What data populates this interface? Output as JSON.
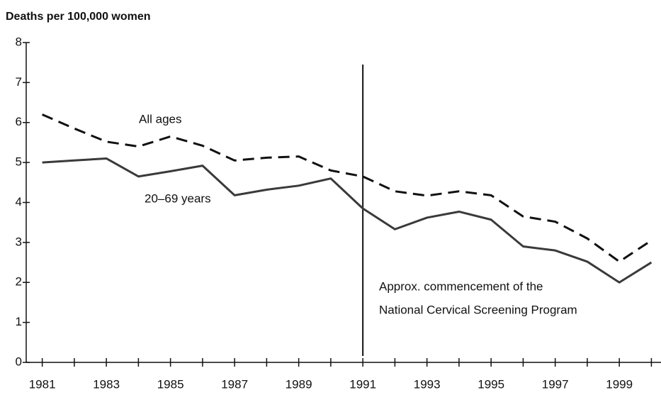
{
  "chart_data": {
    "type": "line",
    "title": "Deaths per 100,000 women",
    "x": [
      1981,
      1982,
      1983,
      1984,
      1985,
      1986,
      1987,
      1988,
      1989,
      1990,
      1991,
      1992,
      1993,
      1994,
      1995,
      1996,
      1997,
      1998,
      1999,
      2000
    ],
    "series": [
      {
        "name": "All ages",
        "color": "#111111",
        "dash": true,
        "values": [
          6.2,
          5.85,
          5.52,
          5.4,
          5.65,
          5.42,
          5.05,
          5.12,
          5.15,
          4.8,
          4.65,
          4.28,
          4.17,
          4.28,
          4.18,
          3.65,
          3.52,
          3.1,
          2.52,
          3.05
        ]
      },
      {
        "name": "20–69 years",
        "color": "#3a3a3a",
        "dash": false,
        "values": [
          5.0,
          5.05,
          5.1,
          4.65,
          4.78,
          4.92,
          4.18,
          4.32,
          4.42,
          4.6,
          3.85,
          3.33,
          3.62,
          3.77,
          3.57,
          2.9,
          2.8,
          2.52,
          2.0,
          2.5
        ]
      }
    ],
    "xlim": [
      1980.5,
      2000.3
    ],
    "ylim": [
      0,
      8
    ],
    "xticks": [
      1981,
      1983,
      1985,
      1987,
      1989,
      1991,
      1993,
      1995,
      1997,
      1999
    ],
    "xminorticks": [
      1982,
      1984,
      1986,
      1988,
      1990,
      1992,
      1994,
      1996,
      1998,
      2000
    ],
    "yticks": [
      0,
      1,
      2,
      3,
      4,
      5,
      6,
      7,
      8
    ],
    "vline": 1991,
    "annotation": [
      "Approx. commencement of the",
      "National Cervical Screening Program"
    ]
  }
}
